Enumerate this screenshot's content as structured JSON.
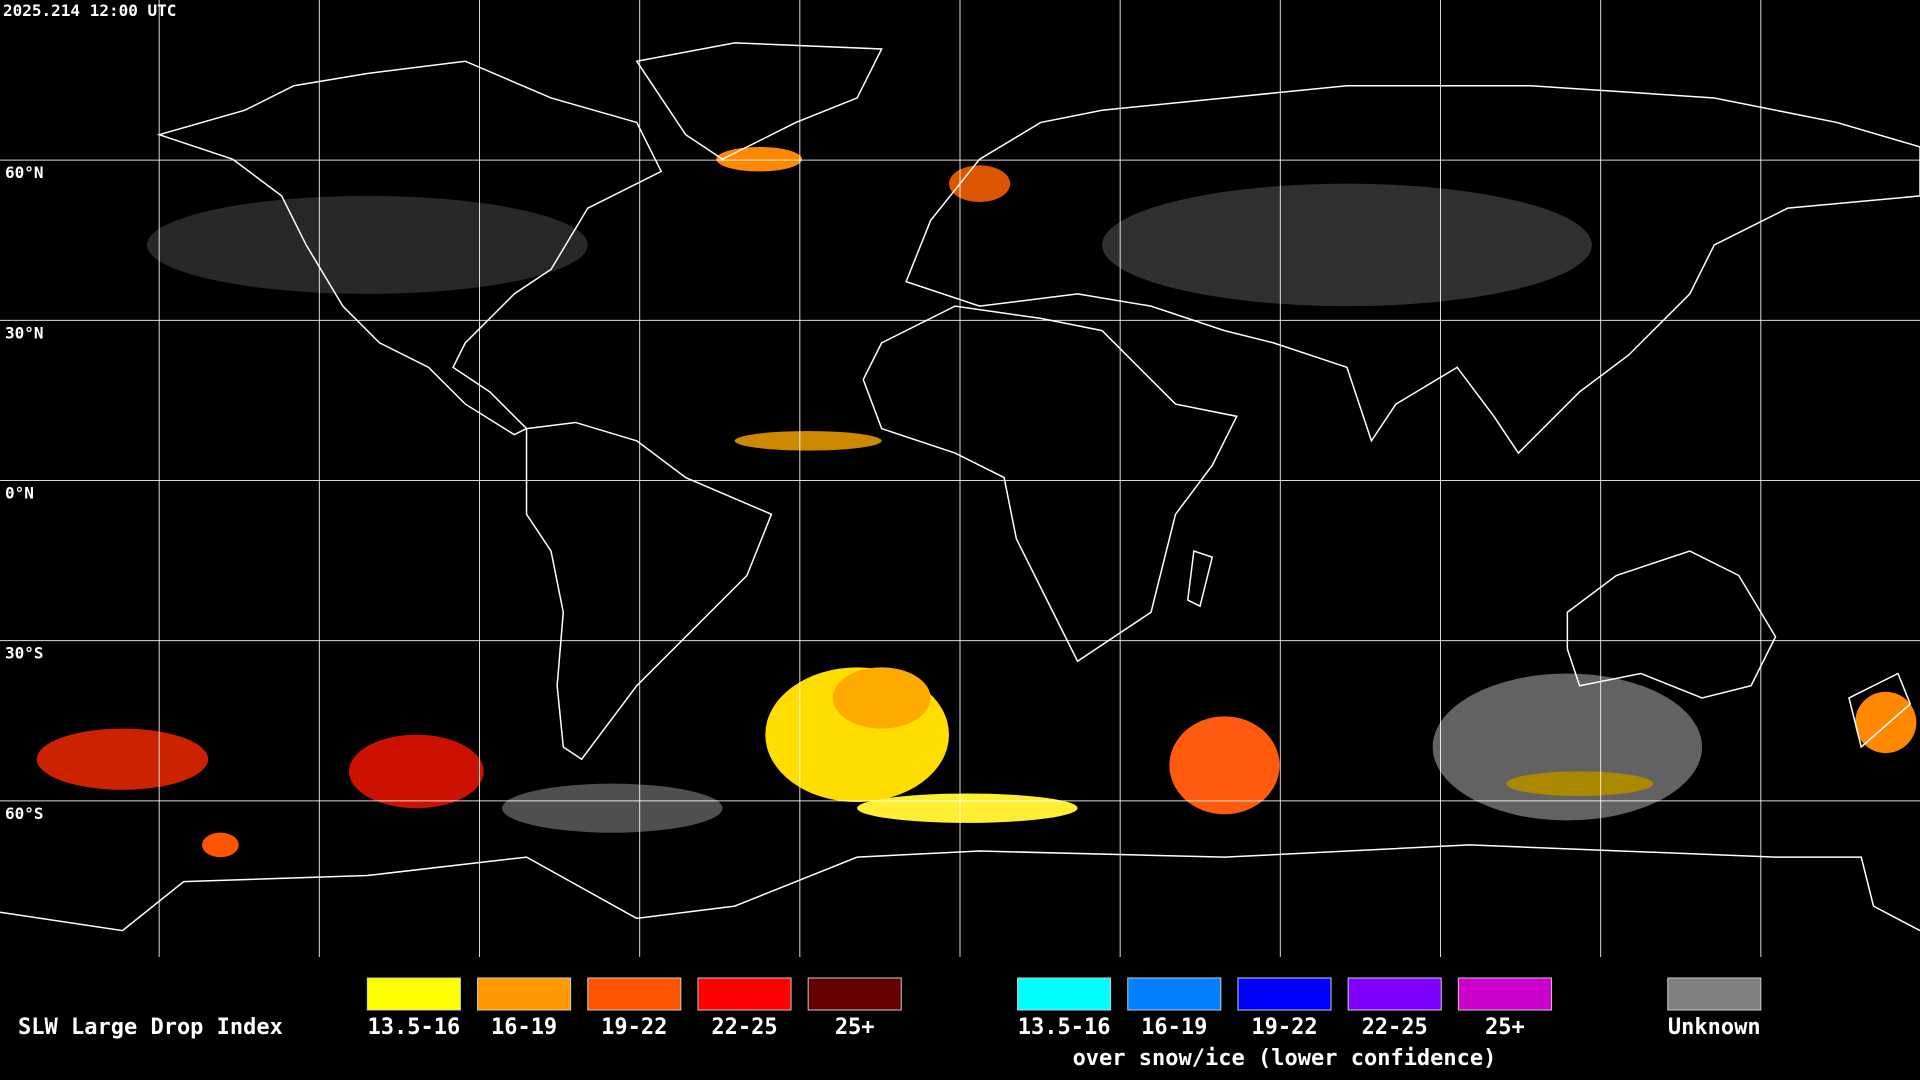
{
  "header": {
    "timestamp": "2025.214 12:00 UTC"
  },
  "latitude_labels": [
    "60°N",
    "30°N",
    "0°N",
    "30°S",
    "60°S"
  ],
  "legend": {
    "title": "SLW Large Drop Index",
    "groups": [
      {
        "items": [
          {
            "label": "13.5-16",
            "color": "#ffff00"
          },
          {
            "label": "16-19",
            "color": "#ff9900"
          },
          {
            "label": "19-22",
            "color": "#ff5500"
          },
          {
            "label": "22-25",
            "color": "#ff0000"
          },
          {
            "label": "25+",
            "color": "#660000"
          }
        ]
      },
      {
        "items": [
          {
            "label": "13.5-16",
            "color": "#00ffff"
          },
          {
            "label": "16-19",
            "color": "#0080ff"
          },
          {
            "label": "19-22",
            "color": "#0000ff"
          },
          {
            "label": "22-25",
            "color": "#8000ff"
          },
          {
            "label": "25+",
            "color": "#cc00cc"
          }
        ],
        "note": "over snow/ice (lower confidence)"
      },
      {
        "items": [
          {
            "label": "Unknown",
            "color": "#808080"
          }
        ]
      }
    ]
  }
}
